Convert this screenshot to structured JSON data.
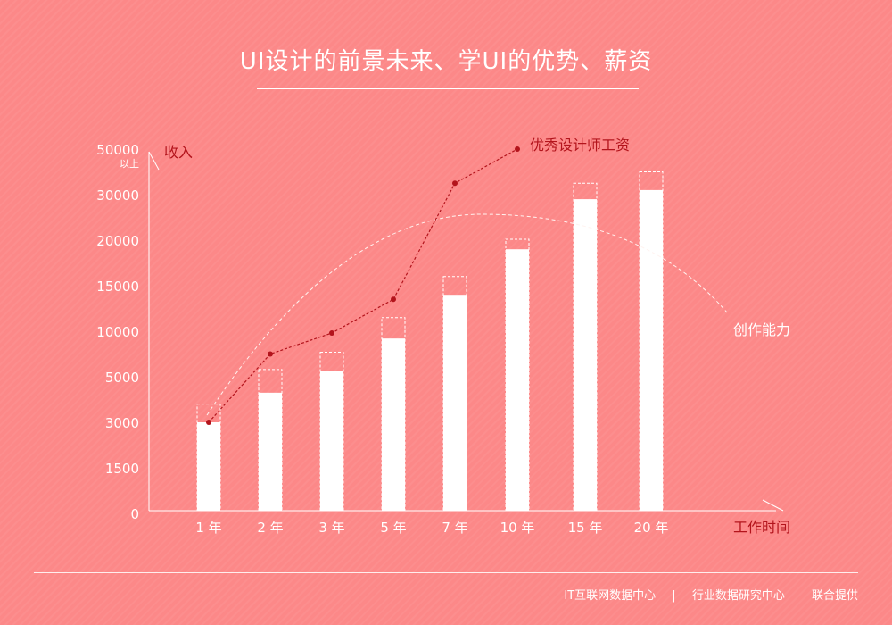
{
  "header": {
    "title": "UI设计的前景未来、学UI的优势、薪资"
  },
  "chart_data": {
    "type": "bar",
    "title": "UI设计的前景未来、学UI的优势、薪资",
    "xlabel": "工作时间",
    "ylabel": "收入",
    "categories": [
      "1 年",
      "2 年",
      "3 年",
      "5 年",
      "7 年",
      "10 年",
      "15 年",
      "20 年"
    ],
    "y_ticks": [
      "0",
      "1500",
      "3000",
      "5000",
      "10000",
      "15000",
      "20000",
      "30000",
      "50000"
    ],
    "y_tick_top_note": "以上",
    "y_scale_note": "non-uniform tick spacing",
    "bar_series": [
      {
        "values": [
          3000,
          4300,
          5600,
          9200,
          14000,
          19000,
          29000,
          32000
        ]
      },
      {
        "values": [
          3800,
          5800,
          7700,
          11500,
          16000,
          20200,
          35000,
          40000
        ]
      }
    ],
    "salary_line": {
      "name": "优秀设计师工资",
      "values": [
        3000,
        7500,
        9800,
        13500,
        35000,
        50000
      ]
    },
    "ability_curve": {
      "name": "创作能力"
    },
    "colors": {
      "background": "#fc8888",
      "bar_fill": "#ffffff",
      "salary_line": "#b3141c",
      "axis_label": "#b3141c",
      "text": "#ffffff"
    },
    "grid": false
  },
  "footer": {
    "source1": "IT互联网数据中心",
    "separator": "|",
    "source2": "行业数据研究中心",
    "provided": "联合提供"
  }
}
